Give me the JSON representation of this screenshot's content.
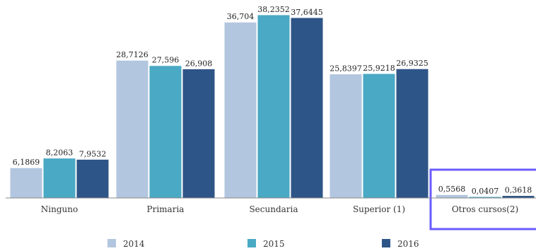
{
  "chart_data": {
    "type": "bar",
    "categories": [
      "Ninguno",
      "Primaria",
      "Secundaria",
      "Superior (1)",
      "Otros cursos(2)"
    ],
    "value_labels": [
      [
        "6,1869",
        "8,2063",
        "7,9532"
      ],
      [
        "28,7126",
        "27,596",
        "26,908"
      ],
      [
        "36,704",
        "38,2352",
        "37,6445"
      ],
      [
        "25,8397",
        "25,9218",
        "26,9325"
      ],
      [
        "0,5568",
        "0,0407",
        "0,3618"
      ]
    ],
    "series": [
      {
        "name": "2014",
        "color": "#b3c6df",
        "values": [
          6.1869,
          28.7126,
          36.704,
          25.8397,
          0.5568
        ]
      },
      {
        "name": "2015",
        "color": "#4aa9c4",
        "values": [
          8.2063,
          27.596,
          38.2352,
          25.9218,
          0.0407
        ]
      },
      {
        "name": "2016",
        "color": "#2e5587",
        "values": [
          7.9532,
          26.908,
          37.6445,
          26.9325,
          0.3618
        ]
      }
    ],
    "ylim": [
      0,
      40
    ],
    "legend_position": "bottom",
    "grid": false,
    "highlight_category": "Otros cursos(2)",
    "highlight_color": "#6a5cff"
  }
}
